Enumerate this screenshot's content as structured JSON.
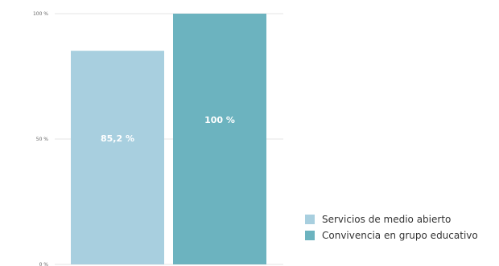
{
  "chart_data": {
    "type": "bar",
    "title": "",
    "xlabel": "",
    "ylabel": "",
    "ylim": [
      0,
      100
    ],
    "y_ticks": [
      {
        "value": 0,
        "label": "0 %"
      },
      {
        "value": 50,
        "label": "50 %"
      },
      {
        "value": 100,
        "label": "100 %"
      }
    ],
    "grid": true,
    "legend_position": "bottom-right",
    "series": [
      {
        "name": "Servicios de medio abierto",
        "value": 85.2,
        "label": "85,2 %",
        "color": "#a8cfdf"
      },
      {
        "name": "Convivencia en grupo educativo",
        "value": 100,
        "label": "100 %",
        "color": "#6cb3bf"
      }
    ]
  }
}
